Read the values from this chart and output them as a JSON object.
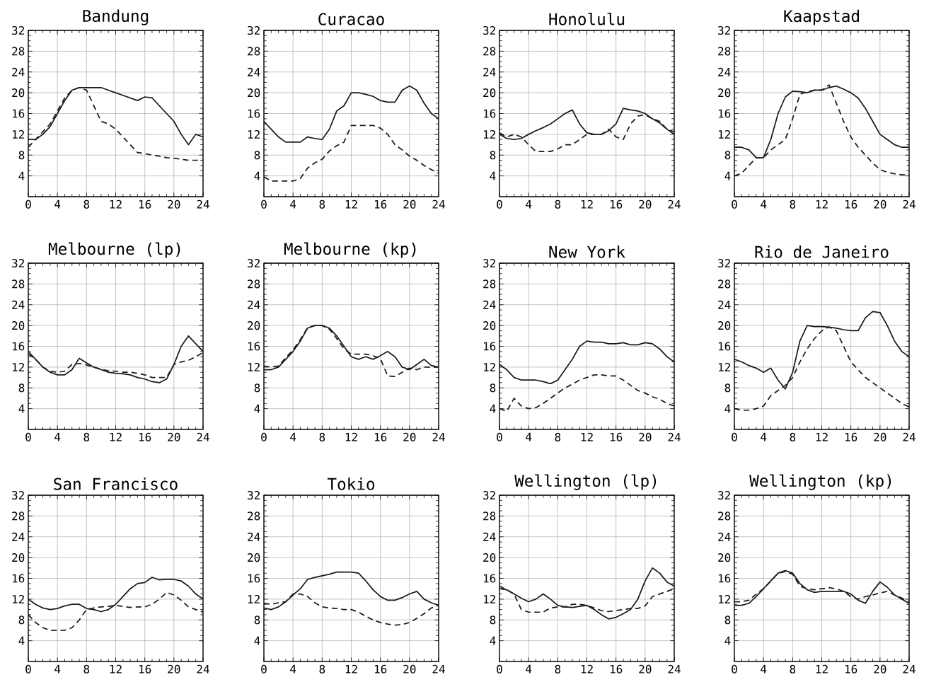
{
  "chart_data": [
    {
      "type": "line",
      "title": "Bandung",
      "x": [
        0,
        1,
        2,
        3,
        4,
        5,
        6,
        7,
        8,
        9,
        10,
        11,
        12,
        13,
        14,
        15,
        16,
        17,
        18,
        19,
        20,
        21,
        22,
        23,
        24
      ],
      "xlim": [
        0,
        24
      ],
      "xticks": [
        0,
        4,
        8,
        12,
        16,
        20,
        24
      ],
      "ylim": [
        0,
        32
      ],
      "yticks": [
        4,
        8,
        12,
        16,
        20,
        24,
        28,
        32
      ],
      "grid": true,
      "series": [
        {
          "color": "#1a1a1a",
          "line_style": "solid",
          "values": [
            11,
            11,
            12,
            13.5,
            16,
            18.5,
            20.5,
            21,
            21,
            21,
            21,
            20.5,
            20,
            19.5,
            19,
            18.5,
            19.2,
            19,
            17.5,
            16,
            14.5,
            12,
            10,
            12,
            11.5
          ]
        },
        {
          "color": "#1a1a1a",
          "line_style": "dashed",
          "values": [
            9.5,
            11,
            12.5,
            14,
            16.5,
            19,
            20.5,
            21,
            20.5,
            17.5,
            14.5,
            14,
            13,
            11.5,
            10,
            8.5,
            8.3,
            8,
            7.8,
            7.5,
            7.4,
            7.2,
            7,
            7,
            7
          ]
        }
      ]
    },
    {
      "type": "line",
      "title": "Curacao",
      "x": [
        0,
        1,
        2,
        3,
        4,
        5,
        6,
        7,
        8,
        9,
        10,
        11,
        12,
        13,
        14,
        15,
        16,
        17,
        18,
        19,
        20,
        21,
        22,
        23,
        24
      ],
      "xlim": [
        0,
        24
      ],
      "xticks": [
        0,
        4,
        8,
        12,
        16,
        20,
        24
      ],
      "ylim": [
        0,
        32
      ],
      "yticks": [
        4,
        8,
        12,
        16,
        20,
        24,
        28,
        32
      ],
      "grid": true,
      "series": [
        {
          "color": "#1a1a1a",
          "line_style": "solid",
          "values": [
            14.5,
            13,
            11.5,
            10.5,
            10.5,
            10.5,
            11.5,
            11.2,
            11,
            13,
            16.5,
            17.5,
            20,
            20,
            19.7,
            19.3,
            18.5,
            18.2,
            18.2,
            20.5,
            21.3,
            20.5,
            18,
            16,
            15
          ]
        },
        {
          "color": "#1a1a1a",
          "line_style": "dashed",
          "values": [
            3.8,
            3,
            3,
            3,
            3,
            3.5,
            5.5,
            6.5,
            7.2,
            8.8,
            9.8,
            10.5,
            13.7,
            13.7,
            13.7,
            13.7,
            13.2,
            12,
            10,
            9,
            7.8,
            7,
            6,
            5.2,
            4.5
          ]
        }
      ]
    },
    {
      "type": "line",
      "title": "Honolulu",
      "x": [
        0,
        1,
        2,
        3,
        4,
        5,
        6,
        7,
        8,
        9,
        10,
        11,
        12,
        13,
        14,
        15,
        16,
        17,
        18,
        19,
        20,
        21,
        22,
        23,
        24
      ],
      "xlim": [
        0,
        24
      ],
      "xticks": [
        0,
        4,
        8,
        12,
        16,
        20,
        24
      ],
      "ylim": [
        0,
        32
      ],
      "yticks": [
        4,
        8,
        12,
        16,
        20,
        24,
        28,
        32
      ],
      "grid": true,
      "series": [
        {
          "color": "#1a1a1a",
          "line_style": "solid",
          "values": [
            12,
            11.2,
            11,
            11.2,
            12,
            12.7,
            13.3,
            14,
            15,
            16,
            16.7,
            14,
            12.3,
            12,
            12,
            12.7,
            14,
            17,
            16.7,
            16.5,
            16,
            15,
            14.2,
            13,
            12
          ]
        },
        {
          "color": "#1a1a1a",
          "line_style": "dashed",
          "values": [
            12.3,
            11.5,
            12,
            11.5,
            10,
            8.7,
            8.7,
            8.7,
            9.2,
            10,
            10,
            11,
            12,
            12,
            12,
            13,
            11.5,
            11,
            14,
            15.5,
            15.8,
            15,
            14.5,
            13,
            12.5
          ]
        }
      ]
    },
    {
      "type": "line",
      "title": "Kaapstad",
      "x": [
        0,
        1,
        2,
        3,
        4,
        5,
        6,
        7,
        8,
        9,
        10,
        11,
        12,
        13,
        14,
        15,
        16,
        17,
        18,
        19,
        20,
        21,
        22,
        23,
        24
      ],
      "xlim": [
        0,
        24
      ],
      "xticks": [
        0,
        4,
        8,
        12,
        16,
        20,
        24
      ],
      "ylim": [
        0,
        32
      ],
      "yticks": [
        4,
        8,
        12,
        16,
        20,
        24,
        28,
        32
      ],
      "grid": true,
      "series": [
        {
          "color": "#1a1a1a",
          "line_style": "solid",
          "values": [
            9.5,
            9.5,
            9,
            7.5,
            7.5,
            11,
            16,
            19.2,
            20.3,
            20.2,
            20,
            20.5,
            20.5,
            21,
            21.3,
            20.7,
            20,
            19,
            17,
            14.5,
            12,
            11,
            10,
            9.5,
            9.5
          ]
        },
        {
          "color": "#1a1a1a",
          "line_style": "dashed",
          "values": [
            4,
            4.5,
            6,
            7.5,
            7.5,
            9,
            10,
            11,
            15,
            19.7,
            20.2,
            20.5,
            20.5,
            21.5,
            18,
            14.5,
            11.5,
            9.5,
            8,
            6.5,
            5.2,
            4.7,
            4.4,
            4.2,
            4.2
          ]
        }
      ]
    },
    {
      "type": "line",
      "title": "Melbourne  (lp)",
      "x": [
        0,
        1,
        2,
        3,
        4,
        5,
        6,
        7,
        8,
        9,
        10,
        11,
        12,
        13,
        14,
        15,
        16,
        17,
        18,
        19,
        20,
        21,
        22,
        23,
        24
      ],
      "xlim": [
        0,
        24
      ],
      "xticks": [
        0,
        4,
        8,
        12,
        16,
        20,
        24
      ],
      "ylim": [
        0,
        32
      ],
      "yticks": [
        4,
        8,
        12,
        16,
        20,
        24,
        28,
        32
      ],
      "grid": true,
      "series": [
        {
          "color": "#1a1a1a",
          "line_style": "solid",
          "values": [
            15,
            13.5,
            12,
            11,
            10.5,
            10.5,
            11.5,
            13.7,
            12.8,
            12,
            11.5,
            11,
            10.8,
            10.7,
            10.5,
            10,
            9.7,
            9.2,
            9,
            9.7,
            12.5,
            16,
            18,
            16.5,
            15
          ]
        },
        {
          "color": "#1a1a1a",
          "line_style": "dashed",
          "values": [
            14.5,
            13.5,
            12,
            11.2,
            11,
            11.2,
            12.5,
            12.7,
            12.4,
            12,
            11.6,
            11.3,
            11.2,
            11,
            11,
            10.8,
            10.5,
            10,
            10,
            10,
            12.5,
            13,
            13.3,
            14,
            14.8
          ]
        }
      ]
    },
    {
      "type": "line",
      "title": "Melbourne (kp)",
      "x": [
        0,
        1,
        2,
        3,
        4,
        5,
        6,
        7,
        8,
        9,
        10,
        11,
        12,
        13,
        14,
        15,
        16,
        17,
        18,
        19,
        20,
        21,
        22,
        23,
        24
      ],
      "xlim": [
        0,
        24
      ],
      "xticks": [
        0,
        4,
        8,
        12,
        16,
        20,
        24
      ],
      "ylim": [
        0,
        32
      ],
      "yticks": [
        4,
        8,
        12,
        16,
        20,
        24,
        28,
        32
      ],
      "grid": true,
      "series": [
        {
          "color": "#1a1a1a",
          "line_style": "solid",
          "values": [
            11.5,
            11.5,
            12,
            13.5,
            15,
            17,
            19.5,
            20,
            20,
            19.5,
            18,
            16,
            14,
            13.5,
            14,
            13.5,
            14.2,
            15,
            14,
            12,
            11.5,
            12.5,
            13.5,
            12.3,
            12
          ]
        },
        {
          "color": "#1a1a1a",
          "line_style": "dashed",
          "values": [
            12.2,
            12,
            12.2,
            13.8,
            15.3,
            17.3,
            19.6,
            20,
            20,
            19.3,
            17.5,
            15.5,
            14.5,
            14.5,
            14.5,
            14.2,
            13.6,
            10.3,
            10.2,
            11,
            11.8,
            11.5,
            12,
            12,
            12
          ]
        }
      ]
    },
    {
      "type": "line",
      "title": "New York",
      "x": [
        0,
        1,
        2,
        3,
        4,
        5,
        6,
        7,
        8,
        9,
        10,
        11,
        12,
        13,
        14,
        15,
        16,
        17,
        18,
        19,
        20,
        21,
        22,
        23,
        24
      ],
      "xlim": [
        0,
        24
      ],
      "xticks": [
        0,
        4,
        8,
        12,
        16,
        20,
        24
      ],
      "ylim": [
        0,
        32
      ],
      "yticks": [
        4,
        8,
        12,
        16,
        20,
        24,
        28,
        32
      ],
      "grid": true,
      "series": [
        {
          "color": "#1a1a1a",
          "line_style": "solid",
          "values": [
            12.5,
            11.5,
            10,
            9.5,
            9.5,
            9.5,
            9.2,
            8.8,
            9.5,
            11.5,
            13.5,
            16,
            17,
            16.8,
            16.8,
            16.5,
            16.5,
            16.7,
            16.3,
            16.3,
            16.7,
            16.5,
            15.5,
            14,
            13
          ]
        },
        {
          "color": "#1a1a1a",
          "line_style": "dashed",
          "values": [
            4,
            3.5,
            6,
            4.5,
            4,
            4.2,
            5,
            6,
            7,
            8,
            8.7,
            9.5,
            10,
            10.5,
            10.5,
            10.3,
            10.3,
            9.5,
            8.5,
            7.5,
            7,
            6.3,
            5.8,
            5,
            4.5
          ]
        }
      ]
    },
    {
      "type": "line",
      "title": "Rio de Janeiro",
      "x": [
        0,
        1,
        2,
        3,
        4,
        5,
        6,
        7,
        8,
        9,
        10,
        11,
        12,
        13,
        14,
        15,
        16,
        17,
        18,
        19,
        20,
        21,
        22,
        23,
        24
      ],
      "xlim": [
        0,
        24
      ],
      "xticks": [
        0,
        4,
        8,
        12,
        16,
        20,
        24
      ],
      "ylim": [
        0,
        32
      ],
      "yticks": [
        4,
        8,
        12,
        16,
        20,
        24,
        28,
        32
      ],
      "grid": true,
      "series": [
        {
          "color": "#1a1a1a",
          "line_style": "solid",
          "values": [
            13.5,
            13,
            12.3,
            11.8,
            11,
            11.8,
            9.5,
            7.8,
            11,
            17,
            20,
            19.8,
            19.8,
            19.7,
            19.5,
            19.2,
            19,
            19,
            21.5,
            22.7,
            22.5,
            20,
            17,
            15,
            14
          ]
        },
        {
          "color": "#1a1a1a",
          "line_style": "dashed",
          "values": [
            4,
            3.7,
            3.7,
            4,
            4.5,
            6.5,
            7.5,
            8.5,
            10,
            13,
            15.5,
            17.5,
            19,
            19.7,
            19,
            16,
            13,
            11.5,
            10,
            9,
            8,
            7,
            6,
            5,
            4.3
          ]
        }
      ]
    },
    {
      "type": "line",
      "title": "San Francisco",
      "x": [
        0,
        1,
        2,
        3,
        4,
        5,
        6,
        7,
        8,
        9,
        10,
        11,
        12,
        13,
        14,
        15,
        16,
        17,
        18,
        19,
        20,
        21,
        22,
        23,
        24
      ],
      "xlim": [
        0,
        24
      ],
      "xticks": [
        0,
        4,
        8,
        12,
        16,
        20,
        24
      ],
      "ylim": [
        0,
        32
      ],
      "yticks": [
        4,
        8,
        12,
        16,
        20,
        24,
        28,
        32
      ],
      "grid": true,
      "series": [
        {
          "color": "#1a1a1a",
          "line_style": "solid",
          "values": [
            12,
            11,
            10.3,
            10,
            10.2,
            10.7,
            11,
            11,
            10.2,
            10,
            9.6,
            10,
            11,
            12.5,
            14,
            15,
            15.2,
            16.2,
            15.7,
            15.8,
            15.8,
            15.5,
            14.5,
            13,
            12
          ]
        },
        {
          "color": "#1a1a1a",
          "line_style": "dashed",
          "values": [
            9,
            7.5,
            6.5,
            6,
            6,
            6,
            6.5,
            8,
            10,
            10.3,
            10.5,
            10.6,
            10.8,
            10.6,
            10.4,
            10.5,
            10.5,
            11,
            12,
            13.3,
            12.8,
            11.8,
            10.5,
            10,
            9.5
          ]
        }
      ]
    },
    {
      "type": "line",
      "title": "Tokio",
      "x": [
        0,
        1,
        2,
        3,
        4,
        5,
        6,
        7,
        8,
        9,
        10,
        11,
        12,
        13,
        14,
        15,
        16,
        17,
        18,
        19,
        20,
        21,
        22,
        23,
        24
      ],
      "xlim": [
        0,
        24
      ],
      "xticks": [
        0,
        4,
        8,
        12,
        16,
        20,
        24
      ],
      "ylim": [
        0,
        32
      ],
      "yticks": [
        4,
        8,
        12,
        16,
        20,
        24,
        28,
        32
      ],
      "grid": true,
      "series": [
        {
          "color": "#1a1a1a",
          "line_style": "solid",
          "values": [
            10.3,
            10,
            10.5,
            11.5,
            12.8,
            14,
            15.8,
            16.2,
            16.5,
            16.8,
            17.2,
            17.2,
            17.2,
            17,
            15.5,
            13.8,
            12.5,
            11.8,
            11.8,
            12.3,
            13,
            13.5,
            12,
            11.3,
            10.8
          ]
        },
        {
          "color": "#1a1a1a",
          "line_style": "dashed",
          "values": [
            11.2,
            11,
            11.3,
            11.5,
            13,
            13,
            12.5,
            11.3,
            10.5,
            10.3,
            10.2,
            10,
            10,
            9.5,
            8.7,
            8,
            7.5,
            7.2,
            7,
            7.1,
            7.5,
            8.3,
            9.2,
            10.3,
            10.8
          ]
        }
      ]
    },
    {
      "type": "line",
      "title": "Wellington  (lp)",
      "x": [
        0,
        1,
        2,
        3,
        4,
        5,
        6,
        7,
        8,
        9,
        10,
        11,
        12,
        13,
        14,
        15,
        16,
        17,
        18,
        19,
        20,
        21,
        22,
        23,
        24
      ],
      "xlim": [
        0,
        24
      ],
      "xticks": [
        0,
        4,
        8,
        12,
        16,
        20,
        24
      ],
      "ylim": [
        0,
        32
      ],
      "yticks": [
        4,
        8,
        12,
        16,
        20,
        24,
        28,
        32
      ],
      "grid": true,
      "series": [
        {
          "color": "#1a1a1a",
          "line_style": "solid",
          "values": [
            14,
            13.8,
            13,
            12.2,
            11.5,
            12,
            13,
            12,
            10.8,
            10.5,
            10.4,
            10.6,
            10.8,
            10,
            9,
            8.2,
            8.5,
            9.2,
            10,
            12,
            15.5,
            18,
            17,
            15.3,
            14.5
          ]
        },
        {
          "color": "#1a1a1a",
          "line_style": "dashed",
          "values": [
            14.5,
            13.8,
            13,
            10,
            9.5,
            9.5,
            9.5,
            10.3,
            10.5,
            10.5,
            11,
            11,
            10.8,
            10.3,
            9.8,
            9.6,
            9.8,
            10,
            10.2,
            10.2,
            10.7,
            12.5,
            13,
            13.5,
            14
          ]
        }
      ]
    },
    {
      "type": "line",
      "title": "Wellington  (kp)",
      "x": [
        0,
        1,
        2,
        3,
        4,
        5,
        6,
        7,
        8,
        9,
        10,
        11,
        12,
        13,
        14,
        15,
        16,
        17,
        18,
        19,
        20,
        21,
        22,
        23,
        24
      ],
      "xlim": [
        0,
        24
      ],
      "xticks": [
        0,
        4,
        8,
        12,
        16,
        20,
        24
      ],
      "ylim": [
        0,
        32
      ],
      "yticks": [
        4,
        8,
        12,
        16,
        20,
        24,
        28,
        32
      ],
      "grid": true,
      "series": [
        {
          "color": "#1a1a1a",
          "line_style": "solid",
          "values": [
            10.8,
            10.8,
            11.2,
            12.5,
            14,
            15.5,
            17,
            17.5,
            17,
            15,
            13.8,
            13.3,
            13.5,
            13.5,
            13.5,
            13.5,
            13,
            11.8,
            11.2,
            13.5,
            15.3,
            14.3,
            12.8,
            12,
            11.2
          ]
        },
        {
          "color": "#1a1a1a",
          "line_style": "dashed",
          "values": [
            11.5,
            11.5,
            11.8,
            13,
            14,
            15.5,
            17,
            17.3,
            16.8,
            14.5,
            14,
            13.8,
            14,
            14.2,
            14,
            13.5,
            12.5,
            12,
            12.5,
            12.8,
            13.2,
            13.5,
            12.8,
            12.2,
            11.5
          ]
        }
      ]
    }
  ]
}
